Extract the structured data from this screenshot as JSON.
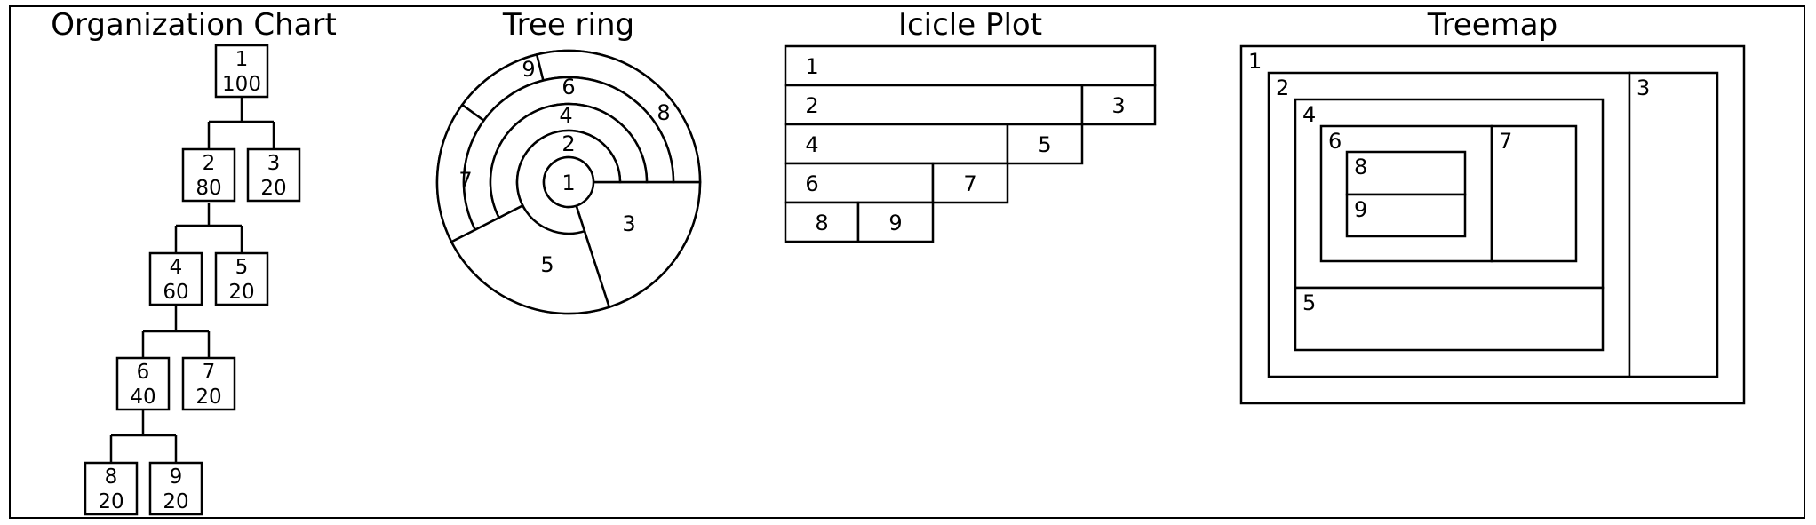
{
  "titles": {
    "org": "Organization Chart",
    "ring": "Tree ring",
    "icicle": "Icicle Plot",
    "treemap": "Treemap"
  },
  "org": {
    "nodes": [
      {
        "id": "1",
        "value": "100"
      },
      {
        "id": "2",
        "value": "80"
      },
      {
        "id": "3",
        "value": "20"
      },
      {
        "id": "4",
        "value": "60"
      },
      {
        "id": "5",
        "value": "20"
      },
      {
        "id": "6",
        "value": "40"
      },
      {
        "id": "7",
        "value": "20"
      },
      {
        "id": "8",
        "value": "20"
      },
      {
        "id": "9",
        "value": "20"
      }
    ]
  },
  "ring": {
    "labels": [
      "1",
      "2",
      "3",
      "4",
      "5",
      "6",
      "7",
      "8",
      "9"
    ]
  },
  "icicle": {
    "labels": [
      "1",
      "2",
      "3",
      "4",
      "5",
      "6",
      "7",
      "8",
      "9"
    ]
  },
  "treemap": {
    "labels": [
      "1",
      "2",
      "3",
      "4",
      "5",
      "6",
      "7",
      "8",
      "9"
    ]
  }
}
